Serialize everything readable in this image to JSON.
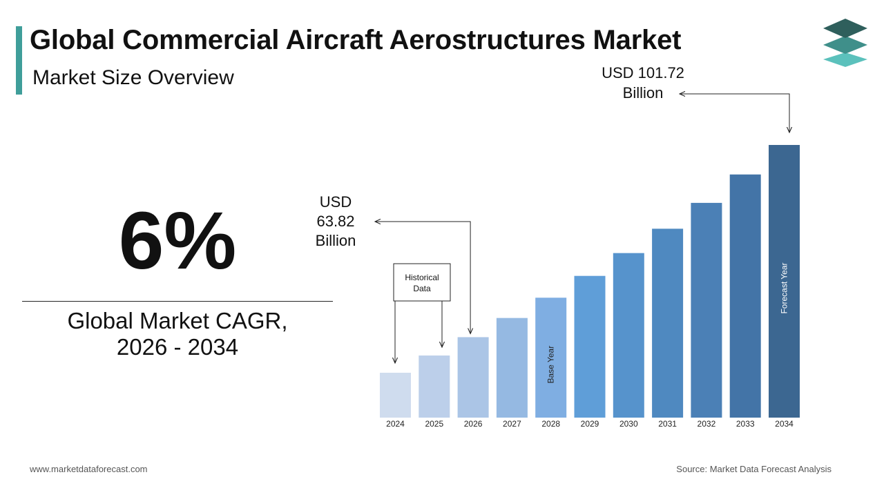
{
  "header": {
    "title": "Global Commercial Aircraft Aerostructures Market",
    "subtitle": "Market Size Overview"
  },
  "cagr": {
    "value": "6%",
    "label_line1": "Global Market CAGR,",
    "label_line2": "2026 - 2034"
  },
  "colors": {
    "accent": "#3f9e9a",
    "logo_top": "#2f5f5c",
    "logo_mid": "#3f8f8a",
    "logo_bottom": "#5bc1bc"
  },
  "chart_data": {
    "type": "bar",
    "categories": [
      "2024",
      "2025",
      "2026",
      "2027",
      "2028",
      "2029",
      "2030",
      "2031",
      "2032",
      "2033",
      "2034"
    ],
    "values": [
      56.8,
      60.2,
      63.82,
      67.6,
      71.6,
      75.9,
      80.4,
      85.2,
      90.3,
      95.9,
      101.72
    ],
    "colors": [
      "#cfdcee",
      "#bccfea",
      "#abc5e6",
      "#95b9e2",
      "#7faee2",
      "#5f9ed8",
      "#5693cc",
      "#4f89c0",
      "#4b80b6",
      "#4374a7",
      "#3c6791"
    ],
    "bar_labels": {
      "2028": "Base Year",
      "2034": "Forecast Year"
    },
    "annotations": {
      "start_label": [
        "USD",
        "63.82",
        "Billion"
      ],
      "end_label": [
        "USD 101.72",
        "Billion"
      ],
      "historical_label": [
        "Historical",
        "Data"
      ]
    },
    "title": "",
    "xlabel": "",
    "ylabel": ""
  },
  "footer": {
    "website": "www.marketdataforecast.com",
    "source": "Source: Market Data Forecast Analysis"
  }
}
